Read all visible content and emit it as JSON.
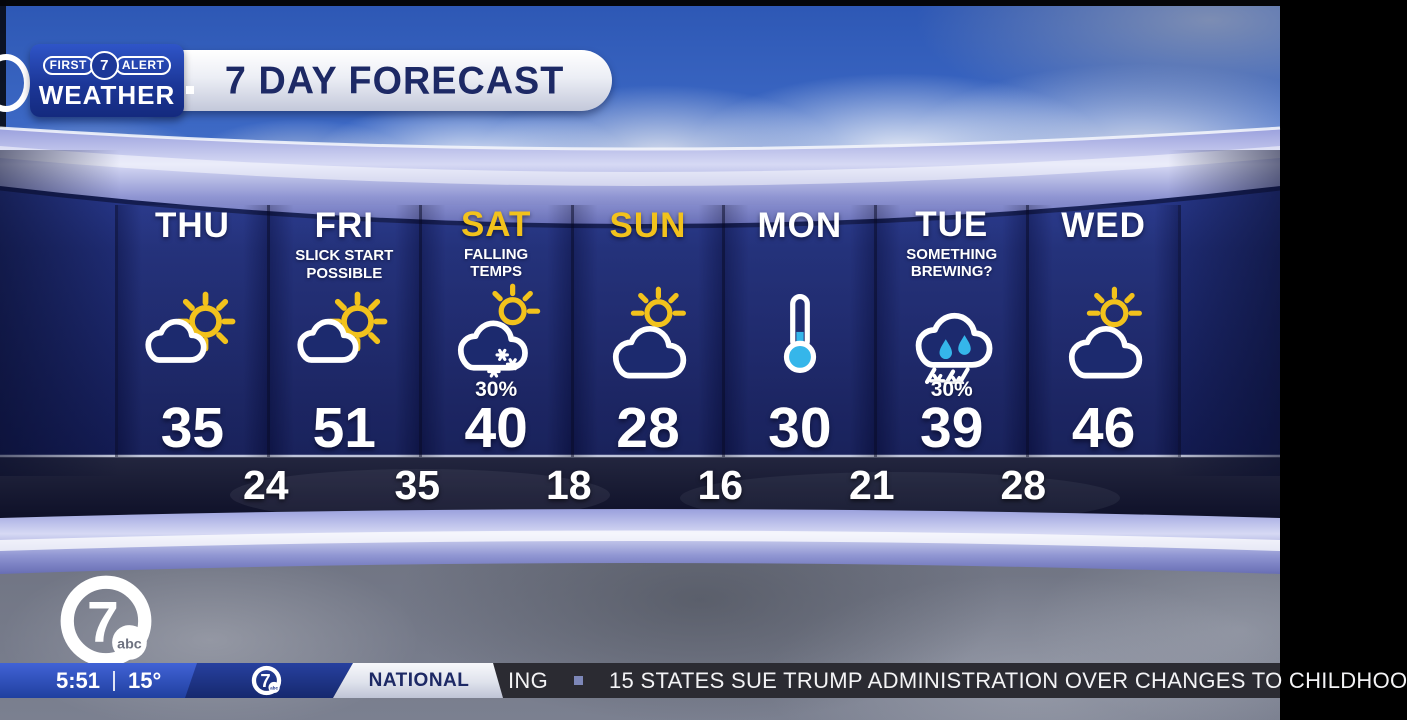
{
  "header": {
    "badge": {
      "first": "FIRST",
      "channel": "7",
      "alert": "ALERT",
      "weather": "WEATHER"
    },
    "title": "7 DAY FORECAST"
  },
  "forecast": {
    "days": [
      {
        "name": "THU",
        "weekend": false,
        "note": "",
        "icon": "partly-sunny",
        "precip": "",
        "high": "35"
      },
      {
        "name": "FRI",
        "weekend": false,
        "note": "SLICK START POSSIBLE",
        "icon": "partly-sunny",
        "precip": "",
        "high": "51"
      },
      {
        "name": "SAT",
        "weekend": true,
        "note": "FALLING TEMPS",
        "icon": "snow-showers",
        "precip": "30%",
        "high": "40"
      },
      {
        "name": "SUN",
        "weekend": true,
        "note": "",
        "icon": "mostly-cloudy",
        "precip": "",
        "high": "28"
      },
      {
        "name": "MON",
        "weekend": false,
        "note": "",
        "icon": "thermometer",
        "precip": "",
        "high": "30"
      },
      {
        "name": "TUE",
        "weekend": false,
        "note": "SOMETHING BREWING?",
        "icon": "wintry-mix",
        "precip": "30%",
        "high": "39"
      },
      {
        "name": "WED",
        "weekend": false,
        "note": "",
        "icon": "mostly-cloudy",
        "precip": "",
        "high": "46"
      }
    ],
    "lows": [
      "24",
      "35",
      "18",
      "16",
      "21",
      "28"
    ]
  },
  "station": {
    "channel": "7",
    "network": "abc"
  },
  "ticker": {
    "time": "5:51",
    "temp": "15°",
    "category": "NATIONAL",
    "partial": "ING",
    "headline": "15 STATES SUE TRUMP ADMINISTRATION OVER CHANGES TO CHILDHOO"
  },
  "colors": {
    "accent_yellow": "#f2c21c",
    "cold_blue": "#35b6ea",
    "panel_navy": "#1c2a6e",
    "band_lavender": "#aab0e2",
    "ticker_blue": "#2a4cc0",
    "category_navy": "#1d2965"
  }
}
